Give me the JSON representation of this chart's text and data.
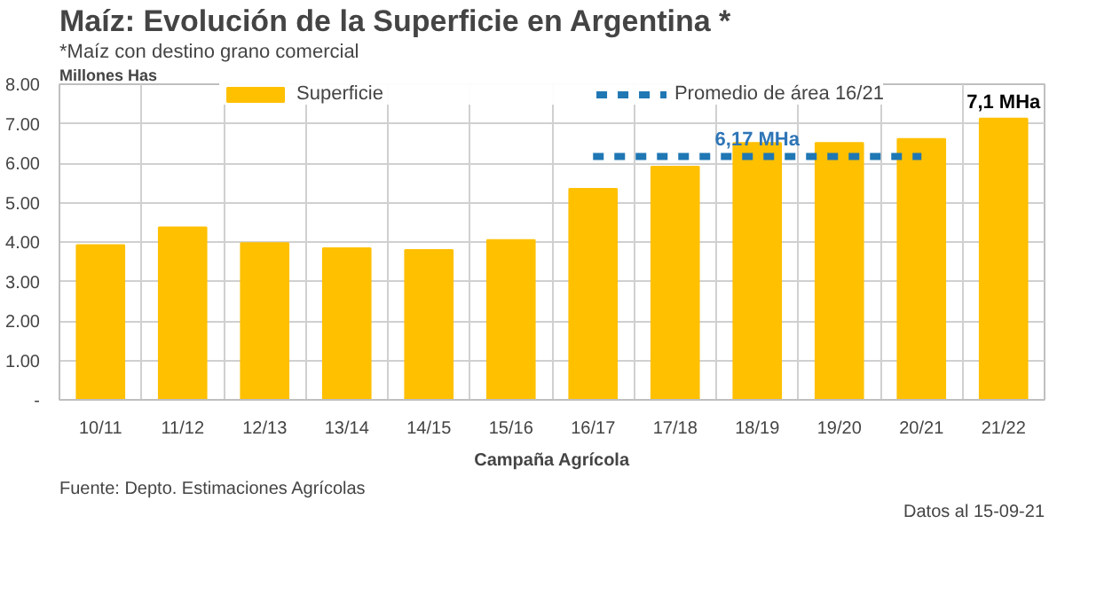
{
  "chart_data": {
    "type": "bar",
    "title": "Maíz: Evolución de la Superficie en Argentina *",
    "subtitle": "*Maíz con destino grano comercial",
    "ylabel": "Millones Has",
    "xlabel": "Campaña Agrícola",
    "categories": [
      "10/11",
      "11/12",
      "12/13",
      "13/14",
      "14/15",
      "15/16",
      "16/17",
      "17/18",
      "18/19",
      "19/20",
      "20/21",
      "21/22"
    ],
    "series": [
      {
        "name": "Superficie",
        "color": "#ffc000",
        "values": [
          3.92,
          4.37,
          3.97,
          3.84,
          3.8,
          4.05,
          5.35,
          5.91,
          6.51,
          6.51,
          6.61,
          7.13
        ]
      },
      {
        "name": "Promedio de área 16/21",
        "type": "line",
        "line_style": "dashed",
        "color": "#1f77b4",
        "values": [
          null,
          null,
          null,
          null,
          null,
          null,
          6.17,
          6.17,
          6.17,
          6.17,
          6.17,
          null
        ]
      }
    ],
    "ylim": [
      0,
      8
    ],
    "yticks": [
      {
        "value": 0,
        "label": "-"
      },
      {
        "value": 1,
        "label": "1.00"
      },
      {
        "value": 2,
        "label": "2.00"
      },
      {
        "value": 3,
        "label": "3.00"
      },
      {
        "value": 4,
        "label": "4.00"
      },
      {
        "value": 5,
        "label": "5.00"
      },
      {
        "value": 6,
        "label": "6.00"
      },
      {
        "value": 7,
        "label": "7.00"
      },
      {
        "value": 8,
        "label": "8.00"
      }
    ],
    "grid": true,
    "legend": "top",
    "annotations": [
      {
        "text": "6,17 MHa",
        "x": "18/19",
        "y": 6.17
      },
      {
        "text": "7,1 MHa",
        "x": "21/22",
        "y": 7.13
      },
      "Fuente: Depto. Estimaciones Agrícolas",
      "Datos al 15-09-21"
    ]
  }
}
